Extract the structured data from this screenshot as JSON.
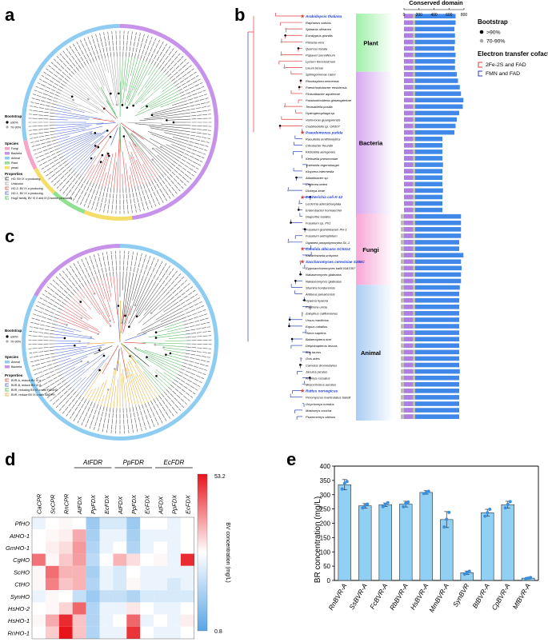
{
  "panels": {
    "a": "a",
    "b": "b",
    "c": "c",
    "d": "d",
    "e": "e"
  },
  "panel_a": {
    "legend": {
      "bootstrap_title": "Bootstrap",
      "bootstrap_items": [
        "≥90%",
        "70-90%"
      ],
      "species_title": "Species",
      "species_items": [
        {
          "label": "Fungi",
          "color": "#f6a5c8"
        },
        {
          "label": "Bacteria",
          "color": "#c792ea"
        },
        {
          "label": "Animal",
          "color": "#8ecdf1"
        },
        {
          "label": "Plant",
          "color": "#8fe08f"
        },
        {
          "label": "yeast",
          "color": "#f5dd6a"
        }
      ],
      "properties_title": "Properties",
      "properties_items": [
        {
          "label": "HO, BV IX α producing",
          "color": "#333333"
        },
        {
          "label": "Unknown",
          "color": "#999999"
        },
        {
          "label": "HO-2, BV IX α producing",
          "color": "#e23b3b"
        },
        {
          "label": "HO-1, BV IX α producing",
          "color": "#3b5bd9"
        },
        {
          "label": "HugZ family, BV IX δ and IX β isomer producing",
          "color": "#3cb04a"
        }
      ]
    }
  },
  "panel_c": {
    "legend": {
      "bootstrap_title": "Bootstrap",
      "bootstrap_items": [
        "≥90%",
        "70-90%"
      ],
      "species_title": "Species",
      "species_items": [
        {
          "label": "Animal",
          "color": "#8ecdf1"
        },
        {
          "label": "Bacteria",
          "color": "#c792ea"
        }
      ],
      "properties_title": "Properties",
      "properties_items": [
        {
          "label": "BVR-A, reduce BV IX α",
          "color": "#e23b3b"
        },
        {
          "label": "BVR-B, reduce BV IX β",
          "color": "#3b5bd9"
        },
        {
          "label": "BVR, reducing BV IX α with F420H2",
          "color": "#3cb04a"
        },
        {
          "label": "BVR, reduce BV IX α with NADPH",
          "color": "#e8a21a"
        }
      ]
    }
  },
  "panel_b": {
    "conserved_title": "Conserved domain",
    "axis_ticks": [
      "0",
      "200",
      "400",
      "600",
      "800"
    ],
    "bootstrap_title": "Bootstrap",
    "bootstrap_items": [
      ">90%",
      "70-90%"
    ],
    "cofactor_title": "Electron transfer cofactor",
    "cofactor_items": [
      {
        "label": "2Fe-2S and FAD",
        "color": "#e23b3b"
      },
      {
        "label": "FMN and FAD",
        "color": "#2a3fbf"
      }
    ],
    "groups": [
      {
        "label": "Plant",
        "color": "#9ff0a8"
      },
      {
        "label": "Bacteria",
        "color": "#d7a8f0"
      },
      {
        "label": "Fungi",
        "color": "#f7a6d6"
      },
      {
        "label": "Animal",
        "color": "#a9ccf3"
      }
    ],
    "species": [
      {
        "name": "Arabidopsis thaliana",
        "highlight": true,
        "group": 0,
        "len": 0.86
      },
      {
        "name": "Raphanus sativus",
        "highlight": false,
        "group": 0,
        "len": 0.86
      },
      {
        "name": "Spinacia oleracea",
        "highlight": false,
        "group": 0,
        "len": 0.84
      },
      {
        "name": "Eucalyptus grandis",
        "highlight": false,
        "group": 0,
        "len": 0.85
      },
      {
        "name": "Pistacia vera",
        "highlight": false,
        "group": 0,
        "len": 0.85
      },
      {
        "name": "Quercus lobata",
        "highlight": false,
        "group": 0,
        "len": 0.84
      },
      {
        "name": "Papaver somniferum",
        "highlight": false,
        "group": 0,
        "len": 0.86
      },
      {
        "name": "Lycium ferocissimum",
        "highlight": false,
        "group": 0,
        "len": 0.85
      },
      {
        "name": "Linum tenue",
        "highlight": false,
        "group": 0,
        "len": 0.85
      },
      {
        "name": "Sphingomonas caeni",
        "highlight": false,
        "group": 1,
        "len": 0.88
      },
      {
        "name": "Rhodospirea sennensis",
        "highlight": false,
        "group": 1,
        "len": 0.9
      },
      {
        "name": "Paenirhodobacter enshiensis",
        "highlight": false,
        "group": 1,
        "len": 0.93
      },
      {
        "name": "Pinisolibacter aquiterrae",
        "highlight": false,
        "group": 1,
        "len": 0.95
      },
      {
        "name": "Paraburkholderia ginsengiterrae",
        "highlight": false,
        "group": 1,
        "len": 0.99
      },
      {
        "name": "Terasakiella pusilla",
        "highlight": false,
        "group": 1,
        "len": 0.98
      },
      {
        "name": "Hydrogenophaga sp.",
        "highlight": false,
        "group": 1,
        "len": 0.92
      },
      {
        "name": "Variovorax guangxiensis",
        "highlight": false,
        "group": 1,
        "len": 0.88
      },
      {
        "name": "Crabtreeiella sp. OK607",
        "highlight": false,
        "group": 1,
        "len": 0.86
      },
      {
        "name": "Pseudomonas putida",
        "highlight": true,
        "group": 1,
        "len": 0.84
      },
      {
        "name": "Raoultella ornithinolytica",
        "highlight": false,
        "group": 1,
        "len": 0.64
      },
      {
        "name": "Citrobacter freundii",
        "highlight": false,
        "group": 1,
        "len": 0.64
      },
      {
        "name": "Klebsiella aerogenes",
        "highlight": false,
        "group": 1,
        "len": 0.64
      },
      {
        "name": "Klebsiella pneumoniae",
        "highlight": false,
        "group": 1,
        "len": 0.64
      },
      {
        "name": "Yokenella regensburgei",
        "highlight": false,
        "group": 1,
        "len": 0.65
      },
      {
        "name": "Kluyvera intermedia",
        "highlight": false,
        "group": 1,
        "len": 0.64
      },
      {
        "name": "Atlantibacter sp.",
        "highlight": false,
        "group": 1,
        "len": 0.64
      },
      {
        "name": "Cedecea neteri",
        "highlight": false,
        "group": 1,
        "len": 0.64
      },
      {
        "name": "Dickeya zeae",
        "highlight": false,
        "group": 1,
        "len": 0.65
      },
      {
        "name": "Escherichia coli K-12",
        "highlight": true,
        "group": 1,
        "len": 0.64
      },
      {
        "name": "Leclercia adecarboxylata",
        "highlight": false,
        "group": 1,
        "len": 0.64
      },
      {
        "name": "Enterobacter hormaechei",
        "highlight": false,
        "group": 1,
        "len": 0.64
      },
      {
        "name": "Diaporthe tuoides",
        "highlight": false,
        "group": 2,
        "len": 0.95
      },
      {
        "name": "Fusarium sp. Ph1",
        "highlight": false,
        "group": 2,
        "len": 0.95
      },
      {
        "name": "Fusarium graminearum PH-1",
        "highlight": false,
        "group": 2,
        "len": 0.95
      },
      {
        "name": "Fusarium anthophilum",
        "highlight": false,
        "group": 2,
        "len": 0.95
      },
      {
        "name": "Ogataea parapolymorpha DL-1",
        "highlight": false,
        "group": 2,
        "len": 0.92
      },
      {
        "name": "Candida albicans SC5314",
        "highlight": true,
        "group": 2,
        "len": 0.92
      },
      {
        "name": "Kazachstania unispora",
        "highlight": false,
        "group": 2,
        "len": 0.99
      },
      {
        "name": "Saccharomyces cerevisiae S288C",
        "highlight": true,
        "group": 2,
        "len": 0.95
      },
      {
        "name": "Zygosaccharomyces bailii ISA1307",
        "highlight": false,
        "group": 2,
        "len": 0.96
      },
      {
        "name": "Nakaseomyces glabratus",
        "highlight": false,
        "group": 2,
        "len": 0.95
      },
      {
        "name": "Nakaseomyces glabratus",
        "highlight": false,
        "group": 2,
        "len": 0.95
      },
      {
        "name": "Sturnira hondurensis",
        "highlight": false,
        "group": 3,
        "len": 0.93
      },
      {
        "name": "Artibeus jamaicensis",
        "highlight": false,
        "group": 3,
        "len": 0.92
      },
      {
        "name": "Hyaena hyaena",
        "highlight": false,
        "group": 3,
        "len": 0.92
      },
      {
        "name": "Panthera uncia",
        "highlight": false,
        "group": 3,
        "len": 0.92
      },
      {
        "name": "Zalophus californianus",
        "highlight": false,
        "group": 3,
        "len": 0.92
      },
      {
        "name": "Ursus maritimus",
        "highlight": false,
        "group": 3,
        "len": 0.92
      },
      {
        "name": "Equus caballus",
        "highlight": false,
        "group": 3,
        "len": 0.92
      },
      {
        "name": "Homo sapiens",
        "highlight": false,
        "group": 3,
        "len": 0.92
      },
      {
        "name": "Balaenoptera ricei",
        "highlight": false,
        "group": 3,
        "len": 0.92
      },
      {
        "name": "Delphinapterus leucas",
        "highlight": false,
        "group": 3,
        "len": 0.92
      },
      {
        "name": "Bos taurus",
        "highlight": false,
        "group": 3,
        "len": 0.92
      },
      {
        "name": "Ovis aries",
        "highlight": false,
        "group": 3,
        "len": 0.92
      },
      {
        "name": "Camelus dromedarius",
        "highlight": false,
        "group": 3,
        "len": 0.92
      },
      {
        "name": "Jaculus jaculus",
        "highlight": false,
        "group": 3,
        "len": 0.93
      },
      {
        "name": "Acomys russatus",
        "highlight": false,
        "group": 3,
        "len": 0.92
      },
      {
        "name": "Mesocricetus auratus",
        "highlight": false,
        "group": 3,
        "len": 0.92
      },
      {
        "name": "Rattus norvegicus",
        "highlight": true,
        "group": 3,
        "len": 0.92
      },
      {
        "name": "Peromyscus maniculatus bairdii",
        "highlight": false,
        "group": 3,
        "len": 0.92
      },
      {
        "name": "Onychomys torridus",
        "highlight": false,
        "group": 3,
        "len": 0.92
      },
      {
        "name": "Mastomys coucha",
        "highlight": false,
        "group": 3,
        "len": 0.92
      },
      {
        "name": "Psammomys obesus",
        "highlight": false,
        "group": 3,
        "len": 0.92
      }
    ]
  },
  "panel_d": {
    "title_groups": [
      "AtFDR",
      "PpFDR",
      "EcFDR"
    ],
    "columns": [
      "CaCPR",
      "ScCPR",
      "RnCPR",
      "AtFDX",
      "PpFDX",
      "EcFDX",
      "AtFDX",
      "PpFDX",
      "EcFDX",
      "AtFDX",
      "PpFDX",
      "EcFDX"
    ],
    "rows": [
      "PfHO",
      "AtHO-1",
      "GmHO-1",
      "CgHO",
      "ScHO",
      "CtHO",
      "SynHO",
      "HsHO-2",
      "HsHO-1",
      "RnHO-1"
    ],
    "colorbar_max": "53.2",
    "colorbar_min": "0.8",
    "colorbar_label": "BV concentration (mg/L)",
    "matrix": [
      [
        0.1,
        0.12,
        0.14,
        0.12,
        0.02,
        0.08,
        0.08,
        0.02,
        0.12,
        0.12,
        0.1,
        0.12
      ],
      [
        0.12,
        0.14,
        0.16,
        0.32,
        0.03,
        0.1,
        0.1,
        0.03,
        0.1,
        0.1,
        0.1,
        0.12
      ],
      [
        0.12,
        0.16,
        0.2,
        0.36,
        0.04,
        0.1,
        0.12,
        0.04,
        0.1,
        0.12,
        0.1,
        0.12
      ],
      [
        0.45,
        0.14,
        0.25,
        0.35,
        0.05,
        0.12,
        0.3,
        0.2,
        0.12,
        0.14,
        0.1,
        0.62
      ],
      [
        0.14,
        0.46,
        0.3,
        0.3,
        0.03,
        0.1,
        0.08,
        0.12,
        0.1,
        0.1,
        0.1,
        0.1
      ],
      [
        0.14,
        0.42,
        0.26,
        0.3,
        0.04,
        0.1,
        0.08,
        0.14,
        0.1,
        0.1,
        0.08,
        0.1
      ],
      [
        0.1,
        0.14,
        0.12,
        0.06,
        0.02,
        0.06,
        0.06,
        0.04,
        0.08,
        0.08,
        0.08,
        0.08
      ],
      [
        0.12,
        0.14,
        0.22,
        0.48,
        0.04,
        0.1,
        0.1,
        0.18,
        0.12,
        0.1,
        0.1,
        0.12
      ],
      [
        0.14,
        0.32,
        0.62,
        0.26,
        0.04,
        0.1,
        0.12,
        0.48,
        0.1,
        0.12,
        0.1,
        0.16
      ],
      [
        0.12,
        0.24,
        0.92,
        0.26,
        0.04,
        0.1,
        0.1,
        0.6,
        0.12,
        0.1,
        0.1,
        0.12
      ]
    ]
  },
  "chart_data": {
    "type": "bar",
    "ylabel": "BR concentration (mg/L)",
    "xlabel": "",
    "ylim": [
      0,
      400
    ],
    "yticks": [
      "0",
      "50",
      "100",
      "150",
      "200",
      "250",
      "300",
      "350",
      "400"
    ],
    "categories": [
      "RnBVR-A",
      "SsBVR-A",
      "FcBVR-A",
      "RbBVR-A",
      "HsBVR-A",
      "MmBVR-A",
      "SynBVR",
      "BtBVR-A",
      "CpBVR-A",
      "MfBVR-A"
    ],
    "values": [
      335,
      261,
      265,
      267,
      308,
      213,
      27,
      237,
      265,
      8
    ],
    "errors": [
      18,
      8,
      6,
      10,
      6,
      28,
      6,
      12,
      12,
      3
    ],
    "points": [
      [
        320,
        340,
        346
      ],
      [
        254,
        262,
        267
      ],
      [
        258,
        266,
        272
      ],
      [
        258,
        270,
        274
      ],
      [
        304,
        308,
        312
      ],
      [
        187,
        214,
        238
      ],
      [
        22,
        27,
        32
      ],
      [
        225,
        237,
        249
      ],
      [
        254,
        266,
        276
      ],
      [
        6,
        8,
        10
      ]
    ],
    "bar_color": "#8fd0f4"
  }
}
